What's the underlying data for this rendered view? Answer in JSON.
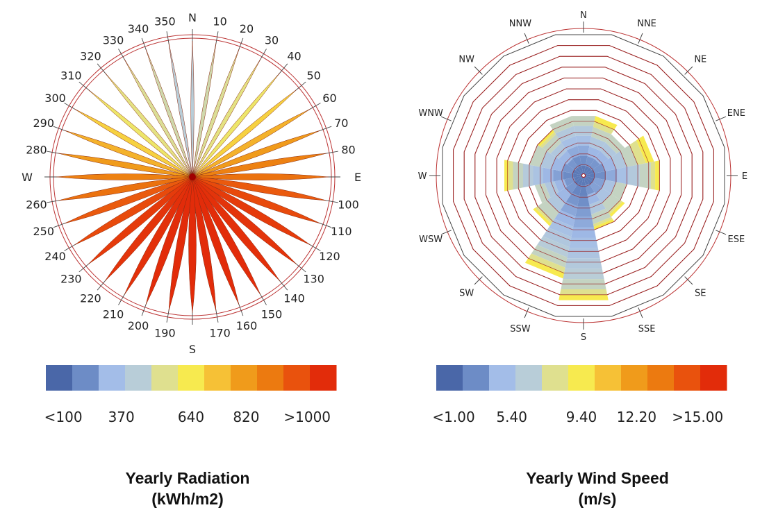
{
  "chart_data": [
    {
      "type": "radial-radiation-rose",
      "title": "Yearly Radiation",
      "units": "(kWh/m2)",
      "cardinal_labels": {
        "N": "N",
        "E": "E",
        "S": "S",
        "W": "W"
      },
      "angle_labels": [
        "10",
        "20",
        "30",
        "40",
        "50",
        "60",
        "70",
        "80",
        "100",
        "110",
        "120",
        "130",
        "140",
        "150",
        "160",
        "170",
        "190",
        "200",
        "210",
        "220",
        "230",
        "240",
        "250",
        "260",
        "280",
        "290",
        "300",
        "310",
        "320",
        "330",
        "340",
        "350"
      ],
      "directions_deg": [
        0,
        10,
        20,
        30,
        40,
        50,
        60,
        70,
        80,
        90,
        100,
        110,
        120,
        130,
        140,
        150,
        160,
        170,
        180,
        190,
        200,
        210,
        220,
        230,
        240,
        250,
        260,
        270,
        280,
        290,
        300,
        310,
        320,
        330,
        340,
        350
      ],
      "radiation_values": [
        300,
        360,
        390,
        420,
        460,
        560,
        640,
        700,
        780,
        820,
        880,
        920,
        960,
        980,
        990,
        1000,
        1000,
        1000,
        1000,
        1000,
        1000,
        990,
        980,
        960,
        920,
        880,
        820,
        780,
        700,
        640,
        560,
        460,
        420,
        390,
        360,
        300
      ],
      "radial_max": 1000,
      "legend_colors": [
        "#4a67a8",
        "#6d8cc6",
        "#a3bde8",
        "#b8cdd8",
        "#dfe08f",
        "#f7ea4f",
        "#f6c136",
        "#f09b1b",
        "#ec7a10",
        "#e9520d",
        "#e22c0a"
      ],
      "legend_tick_labels": [
        "<100",
        "370",
        "640",
        "820",
        ">1000"
      ]
    },
    {
      "type": "wind-rose",
      "title": "Yearly Wind Speed",
      "units": "(m/s)",
      "direction_labels": [
        "N",
        "NNE",
        "NE",
        "ENE",
        "E",
        "ESE",
        "SE",
        "SSE",
        "S",
        "SSW",
        "SW",
        "WSW",
        "W",
        "WNW",
        "NW",
        "NNW"
      ],
      "rings": 13,
      "petals": [
        {
          "dir": "N",
          "total": 5.5,
          "yellow": 0.0
        },
        {
          "dir": "NNE",
          "total": 5.5,
          "yellow": 1.0
        },
        {
          "dir": "NE",
          "total": 4.5,
          "yellow": 0.0
        },
        {
          "dir": "ENE",
          "total": 6.5,
          "yellow": 1.5
        },
        {
          "dir": "E",
          "total": 7.0,
          "yellow": 0.8
        },
        {
          "dir": "ESE",
          "total": 4.0,
          "yellow": 0.0
        },
        {
          "dir": "SE",
          "total": 4.5,
          "yellow": 0.5
        },
        {
          "dir": "SSE",
          "total": 5.0,
          "yellow": 0.5
        },
        {
          "dir": "S",
          "total": 11.5,
          "yellow": 1.0
        },
        {
          "dir": "SSW",
          "total": 9.5,
          "yellow": 1.0
        },
        {
          "dir": "SW",
          "total": 5.5,
          "yellow": 0.5
        },
        {
          "dir": "WSW",
          "total": 4.5,
          "yellow": 0.0
        },
        {
          "dir": "W",
          "total": 7.3,
          "yellow": 0.8
        },
        {
          "dir": "WNW",
          "total": 5.0,
          "yellow": 0.0
        },
        {
          "dir": "NW",
          "total": 5.0,
          "yellow": 0.5
        },
        {
          "dir": "NNW",
          "total": 5.5,
          "yellow": 0.0
        }
      ],
      "legend_colors": [
        "#4a67a8",
        "#6d8cc6",
        "#a3bde8",
        "#b8cdd8",
        "#dfe08f",
        "#f7ea4f",
        "#f6c136",
        "#f09b1b",
        "#ec7a10",
        "#e9520d",
        "#e22c0a"
      ],
      "legend_tick_labels": [
        "<1.00",
        "5.40",
        "9.40",
        "12.20",
        ">15.00"
      ]
    }
  ]
}
